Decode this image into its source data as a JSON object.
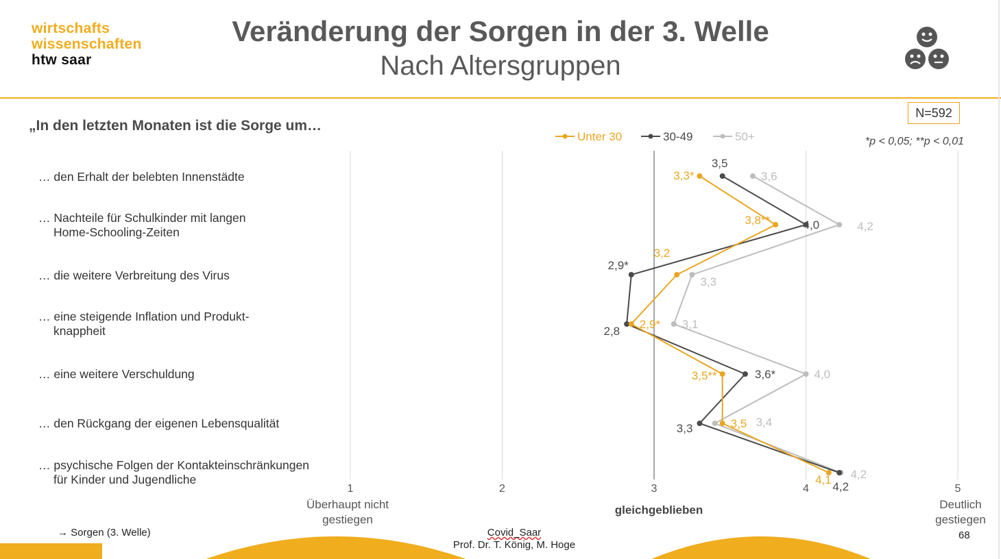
{
  "logo": {
    "line1": "wirtschafts",
    "line2": "wissenschaften",
    "line3": "htw saar"
  },
  "header": {
    "title": "Veränderung der Sorgen in der 3. Welle",
    "subtitle": "Nach Altersgruppen",
    "icon": "faces-icon"
  },
  "question": "„In den letzten Monaten ist die Sorge um…",
  "sample": "N=592",
  "significance_note": "*p < 0,05; **p < 0,01",
  "items": [
    {
      "line1": "… den Erhalt der belebten Innenstädte",
      "line2": ""
    },
    {
      "line1": "… Nachteile für Schulkinder mit langen",
      "line2": "Home-Schooling-Zeiten"
    },
    {
      "line1": "… die weitere Verbreitung des Virus",
      "line2": ""
    },
    {
      "line1": "… eine steigende Inflation und Produkt-",
      "line2": "knappheit"
    },
    {
      "line1": "… eine weitere Verschuldung",
      "line2": ""
    },
    {
      "line1": "… den Rückgang der eigenen Lebensqualität",
      "line2": ""
    },
    {
      "line1": "… psychische Folgen der Kontakteinschränkungen",
      "line2": "für Kinder und Jugendliche"
    }
  ],
  "footer": {
    "link": "→ Sorgen (3. Welle)",
    "project": "Covid_Saar",
    "authors": "Prof. Dr. T. König, M. Hoge",
    "page": "68"
  },
  "colors": {
    "accent": "#f0ad1e",
    "unter30": "#e9a623",
    "age30_49": "#4a4a4a",
    "age50plus": "#bdbdbd"
  },
  "chart_data": {
    "type": "line",
    "orientation": "horizontal",
    "categories": [
      "… den Erhalt der belebten Innenstädte",
      "… Nachteile für Schulkinder mit langen Home-Schooling-Zeiten",
      "… die weitere Verbreitung des Virus",
      "… eine steigende Inflation und Produkt-knappheit",
      "… eine weitere Verschuldung",
      "… den Rückgang der eigenen Lebensqualität",
      "… psychische Folgen der Kontakteinschränkungen für Kinder und Jugendliche"
    ],
    "xlim": [
      1,
      5
    ],
    "xticks": [
      1,
      2,
      3,
      4,
      5
    ],
    "xtick_labels": [
      "1",
      "2",
      "3",
      "4",
      "5"
    ],
    "x_anchor_labels": [
      {
        "value": 1,
        "line1": "Überhaupt nicht",
        "line2": "gestiegen",
        "bold": false
      },
      {
        "value": 3,
        "line1": "gleichgeblieben",
        "line2": "",
        "bold": true
      },
      {
        "value": 5,
        "line1": "Deutlich",
        "line2": "gestiegen",
        "bold": false
      }
    ],
    "legend_position": "top",
    "series": [
      {
        "name": "Unter 30",
        "key": "unter30",
        "values": [
          3.3,
          3.8,
          3.15,
          2.85,
          3.45,
          3.45,
          4.15
        ],
        "labels": [
          "3,3*",
          "3,8**",
          "3,2",
          "2,9*",
          "3,5**",
          "3,5",
          "4,1"
        ]
      },
      {
        "name": "30-49",
        "key": "age30_49",
        "values": [
          3.45,
          4.0,
          2.85,
          2.82,
          3.6,
          3.3,
          4.22
        ],
        "labels": [
          "3,5",
          "4,0",
          "2,9*",
          "2,8",
          "3,6*",
          "3,3",
          "4,2"
        ]
      },
      {
        "name": "50+",
        "key": "age50plus",
        "values": [
          3.65,
          4.22,
          3.25,
          3.13,
          4.0,
          3.4,
          4.23
        ],
        "labels": [
          "3,6",
          "4,2",
          "3,3",
          "3,1",
          "4,0",
          "3,4",
          "4,2"
        ]
      }
    ]
  }
}
